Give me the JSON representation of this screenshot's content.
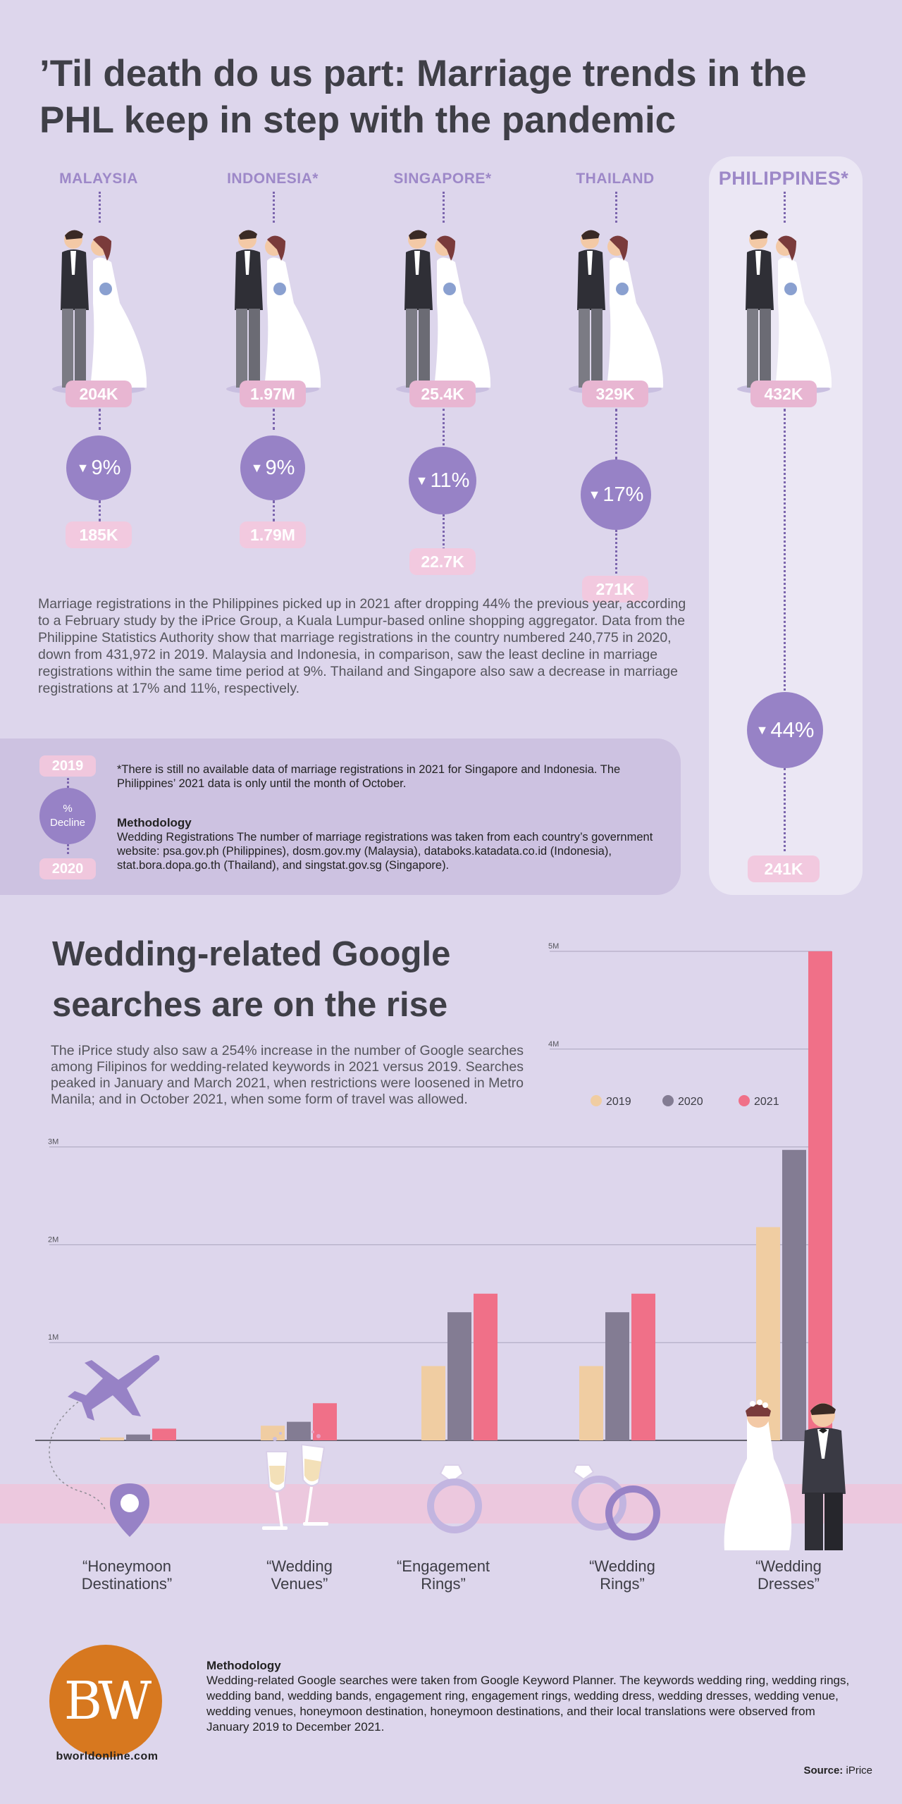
{
  "title": "’Til death do us part: Marriage trends in the PHL keep in step with the pandemic",
  "countries": [
    {
      "name": "MALAYSIA",
      "value_2019": "204K",
      "decline": "9%",
      "value_2020": "185K"
    },
    {
      "name": "INDONESIA*",
      "value_2019": "1.97M",
      "decline": "9%",
      "value_2020": "1.79M"
    },
    {
      "name": "SINGAPORE*",
      "value_2019": "25.4K",
      "decline": "11%",
      "value_2020": "22.7K"
    },
    {
      "name": "THAILAND",
      "value_2019": "329K",
      "decline": "17%",
      "value_2020": "271K"
    },
    {
      "name": "PHILIPPINES*",
      "value_2019": "432K",
      "decline": "44%",
      "value_2020": "241K"
    }
  ],
  "intro_text": "Marriage registrations in the Philippines picked up in 2021 after dropping 44% the previous year, according to a February study by the iPrice Group, a Kuala Lumpur-based online shopping aggregator. Data from the Philippine Statistics Authority show that marriage registrations in the country numbered 240,775 in 2020, down from 431,972 in 2019. Malaysia and Indonesia, in comparison, saw the least decline in marriage registrations within the same time period at 9%. Thailand and Singapore also saw a decrease in marriage registrations at 17% and 11%, respectively.",
  "legend_key": {
    "top": "2019",
    "middle_line1": "%",
    "middle_line2": "Decline",
    "bottom": "2020"
  },
  "footnote": "*There is still no available data of marriage registrations in 2021 for Singapore and Indonesia. The Philippines’ 2021 data is only until the month of October.",
  "methodology1_title": "Methodology",
  "methodology1_text": "Wedding Registrations The number of marriage registrations was taken from each country’s government website: psa.gov.ph (Philippines), dosm.gov.my (Malaysia), databoks.katadata.co.id (Indonesia), stat.bora.dopa.go.th (Thailand), and singstat.gov.sg (Singapore).",
  "section2_title": "Wedding-related Google searches are on the rise",
  "section2_intro": "The iPrice study also saw a 254% increase in the number of Google searches among Filipinos for wedding-related keywords in 2021 versus 2019. Searches peaked in January and March 2021, when restrictions were loosened in Metro Manila; and in October 2021, when some form of travel was allowed.",
  "chart_data": {
    "type": "bar",
    "categories": [
      "“Honeymoon Destinations”",
      "“Wedding Venues”",
      "“Engagement Rings”",
      "“Wedding Rings”",
      "“Wedding Dresses”"
    ],
    "category_lines": [
      [
        "“Honeymoon",
        "Destinations”"
      ],
      [
        "“Wedding",
        "Venues”"
      ],
      [
        "“Engagement",
        "Rings”"
      ],
      [
        "“Wedding",
        "Rings”"
      ],
      [
        "“Wedding",
        "Dresses”"
      ]
    ],
    "series": [
      {
        "name": "2019",
        "color": "#f0cda2",
        "values": [
          30000,
          150000,
          760000,
          760000,
          2180000
        ]
      },
      {
        "name": "2020",
        "color": "#837c93",
        "values": [
          60000,
          190000,
          1310000,
          1310000,
          2970000
        ]
      },
      {
        "name": "2021",
        "color": "#f07088",
        "values": [
          120000,
          380000,
          1500000,
          1500000,
          5000000
        ]
      }
    ],
    "yticks": [
      1000000,
      2000000,
      3000000,
      4000000,
      5000000
    ],
    "ytick_labels": [
      "1M",
      "2M",
      "3M",
      "4M",
      "5M"
    ],
    "ylim": [
      0,
      5000000
    ],
    "grid": true,
    "legend_position": "top-right"
  },
  "methodology2_title": "Methodology",
  "methodology2_text": "Wedding-related Google searches were taken from Google Keyword Planner. The keywords wedding ring, wedding rings, wedding band, wedding bands, engagement ring, engagement rings, wedding dress, wedding dresses, wedding venue, wedding venues, honeymoon destination, honeymoon destinations, and their local translations were observed from January 2019 to December 2021.",
  "logo_text": "BW",
  "site": "bworldonline.com",
  "source_label": "Source:",
  "source_value": "iPrice",
  "colors": {
    "background": "#ddd6ec",
    "accent_purple": "#9782c6",
    "pill_pink": "#e8b6d2",
    "logo_orange": "#d7781f"
  }
}
